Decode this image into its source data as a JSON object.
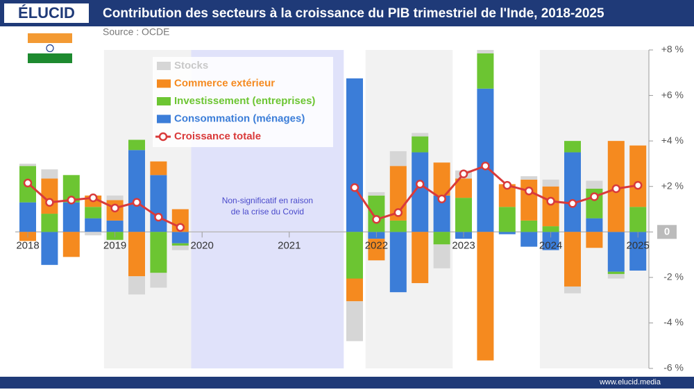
{
  "header": {
    "logo": "ÉLUCID"
  },
  "footer": {
    "url": "www.elucid.media"
  },
  "chart_data": {
    "type": "bar",
    "stacked": true,
    "title": "Contribution des secteurs à la croissance du PIB trimestriel de l'Inde, 2018-2025",
    "source": "Source : OCDE",
    "annotation": [
      "Non-significatif en raison",
      "de la crise du Covid"
    ],
    "categories": [
      "2018",
      null,
      null,
      null,
      "2019",
      null,
      null,
      null,
      "2020",
      null,
      null,
      null,
      "2021",
      null,
      null,
      null,
      "2022",
      null,
      null,
      null,
      "2023",
      null,
      null,
      null,
      "2024",
      null,
      null,
      null,
      "2025"
    ],
    "ylim": [
      -6,
      8
    ],
    "yticks": [
      {
        "value": 8,
        "label": "+8 %"
      },
      {
        "value": 6,
        "label": "+6 %"
      },
      {
        "value": 4,
        "label": "+4 %"
      },
      {
        "value": 2,
        "label": "+2 %"
      },
      0,
      {
        "value": -2,
        "label": "-2 %"
      },
      {
        "value": -4,
        "label": "-4 %"
      },
      {
        "value": -6,
        "label": "-6 %"
      }
    ],
    "series": [
      {
        "name": "Stocks",
        "color": "#d6d6d6",
        "values": [
          0.1,
          0.4,
          null,
          -0.15,
          0.2,
          -0.8,
          -0.65,
          -0.2,
          null,
          null,
          null,
          null,
          null,
          null,
          null,
          -1.75,
          0.15,
          0.65,
          0.15,
          -1.05,
          0.35,
          0.15,
          null,
          0.15,
          0.3,
          -0.3,
          0.35,
          -0.2,
          null
        ]
      },
      {
        "name": "Commerce extérieur",
        "color": "#f58a1f",
        "values": [
          -0.4,
          1.55,
          -1.1,
          0.5,
          0.9,
          -1.95,
          0.6,
          1.0,
          null,
          null,
          null,
          null,
          null,
          null,
          null,
          -1.0,
          -0.95,
          2.4,
          -2.25,
          1.45,
          0.85,
          -5.65,
          1.0,
          1.8,
          1.75,
          -2.4,
          -0.7,
          4.0,
          2.7
        ]
      },
      {
        "name": "Investissement (entreprises)",
        "color": "#6cc532",
        "values": [
          1.6,
          0.8,
          1.2,
          0.5,
          -0.35,
          0.45,
          -1.8,
          -0.1,
          null,
          null,
          null,
          null,
          null,
          null,
          null,
          -2.05,
          1.6,
          0.5,
          0.7,
          -0.55,
          1.5,
          1.55,
          1.1,
          0.5,
          0.25,
          0.5,
          1.3,
          -0.1,
          1.1
        ]
      },
      {
        "name": "Consommation (ménages)",
        "color": "#3b7dd8",
        "values": [
          1.3,
          -1.45,
          1.3,
          0.6,
          0.5,
          3.6,
          2.5,
          -0.5,
          null,
          null,
          null,
          null,
          null,
          null,
          null,
          6.75,
          -0.3,
          -2.65,
          3.5,
          1.6,
          -0.3,
          6.3,
          -0.1,
          -0.65,
          -0.8,
          3.5,
          0.6,
          -1.75,
          -1.7
        ]
      },
      {
        "name": "Croissance totale",
        "type": "line",
        "color": "#d93a3a",
        "values": [
          2.15,
          1.3,
          1.4,
          1.5,
          1.05,
          1.3,
          0.65,
          0.2,
          null,
          null,
          null,
          null,
          null,
          null,
          null,
          1.95,
          0.55,
          0.85,
          2.1,
          1.45,
          2.55,
          2.9,
          2.05,
          1.8,
          1.35,
          1.25,
          1.55,
          1.9,
          2.05
        ]
      }
    ]
  }
}
